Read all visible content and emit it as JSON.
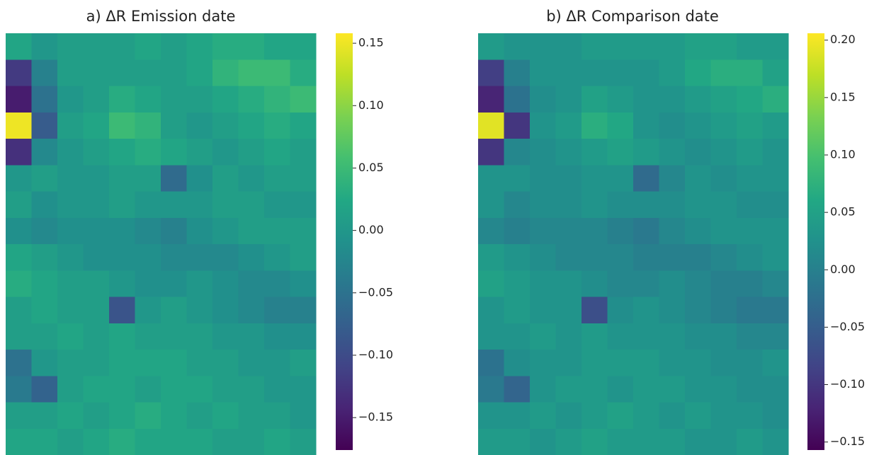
{
  "chart_data": [
    {
      "type": "heatmap",
      "title": "a) ΔR Emission date",
      "colormap": "viridis",
      "clim": [
        -0.176,
        0.158
      ],
      "cticks": [
        0.15,
        {
          "value": 0.1,
          "label": "0.10"
        },
        0.05,
        {
          "value": 0,
          "label": "0.00"
        },
        {
          "value": -0.05,
          "label": "−0.05"
        },
        {
          "value": -0.1,
          "label": "−0.10"
        },
        {
          "value": -0.15,
          "label": "−0.15"
        }
      ],
      "z": [
        [
          0.02,
          0.0,
          0.01,
          0.01,
          0.01,
          0.02,
          0.01,
          0.02,
          0.03,
          0.03,
          0.02,
          0.02
        ],
        [
          -0.12,
          -0.03,
          0.01,
          0.01,
          0.01,
          0.01,
          0.01,
          0.02,
          0.04,
          0.05,
          0.05,
          0.03
        ],
        [
          -0.15,
          -0.05,
          0.0,
          0.01,
          0.03,
          0.02,
          0.01,
          0.01,
          0.02,
          0.03,
          0.04,
          0.05
        ],
        [
          0.15,
          -0.08,
          0.01,
          0.02,
          0.05,
          0.04,
          0.01,
          0.0,
          0.01,
          0.02,
          0.03,
          0.02
        ],
        [
          -0.13,
          -0.02,
          0.0,
          0.01,
          0.02,
          0.03,
          0.02,
          0.01,
          0.0,
          0.01,
          0.02,
          0.01
        ],
        [
          0.0,
          0.01,
          0.0,
          0.0,
          0.01,
          0.01,
          -0.06,
          -0.01,
          0.01,
          0.0,
          0.01,
          0.01
        ],
        [
          0.01,
          -0.01,
          0.0,
          0.0,
          0.01,
          0.0,
          0.0,
          0.0,
          0.01,
          0.01,
          0.0,
          0.0
        ],
        [
          -0.01,
          -0.02,
          -0.01,
          -0.01,
          -0.01,
          -0.02,
          -0.03,
          -0.01,
          0.0,
          0.01,
          0.01,
          0.01
        ],
        [
          0.02,
          0.01,
          0.0,
          -0.01,
          -0.01,
          -0.01,
          -0.02,
          -0.02,
          -0.02,
          -0.01,
          0.0,
          0.01
        ],
        [
          0.03,
          0.02,
          0.01,
          0.01,
          0.0,
          -0.01,
          -0.01,
          0.0,
          -0.01,
          -0.02,
          -0.02,
          -0.01
        ],
        [
          0.01,
          0.02,
          0.01,
          0.01,
          -0.09,
          0.0,
          0.01,
          0.0,
          -0.01,
          -0.02,
          -0.03,
          -0.03
        ],
        [
          0.01,
          0.01,
          0.02,
          0.01,
          0.02,
          0.01,
          0.01,
          0.01,
          0.0,
          0.0,
          -0.01,
          -0.01
        ],
        [
          -0.05,
          0.0,
          0.01,
          0.01,
          0.02,
          0.02,
          0.02,
          0.01,
          0.01,
          0.0,
          0.0,
          0.01
        ],
        [
          -0.04,
          -0.07,
          0.01,
          0.02,
          0.02,
          0.01,
          0.02,
          0.02,
          0.01,
          0.01,
          0.0,
          0.0
        ],
        [
          0.01,
          0.01,
          0.02,
          0.01,
          0.02,
          0.03,
          0.02,
          0.01,
          0.02,
          0.01,
          0.01,
          0.0
        ],
        [
          0.02,
          0.02,
          0.01,
          0.02,
          0.03,
          0.02,
          0.02,
          0.02,
          0.01,
          0.01,
          0.02,
          0.01
        ]
      ]
    },
    {
      "type": "heatmap",
      "title": "b) ΔR Comparison date",
      "colormap": "viridis",
      "clim": [
        -0.157,
        0.206
      ],
      "cticks": [
        {
          "value": 0.2,
          "label": "0.20"
        },
        0.15,
        {
          "value": 0.1,
          "label": "0.10"
        },
        0.05,
        {
          "value": 0,
          "label": "0.00"
        },
        {
          "value": -0.05,
          "label": "−0.05"
        },
        {
          "value": -0.1,
          "label": "−0.10"
        },
        {
          "value": -0.15,
          "label": "−0.15"
        }
      ],
      "z": [
        [
          0.04,
          0.03,
          0.03,
          0.03,
          0.04,
          0.04,
          0.04,
          0.04,
          0.05,
          0.05,
          0.04,
          0.04
        ],
        [
          -0.09,
          0.0,
          0.03,
          0.03,
          0.03,
          0.03,
          0.03,
          0.04,
          0.06,
          0.07,
          0.07,
          0.05
        ],
        [
          -0.12,
          -0.02,
          0.02,
          0.03,
          0.05,
          0.04,
          0.03,
          0.03,
          0.04,
          0.05,
          0.06,
          0.07
        ],
        [
          0.19,
          -0.1,
          0.03,
          0.04,
          0.07,
          0.06,
          0.03,
          0.02,
          0.03,
          0.04,
          0.05,
          0.04
        ],
        [
          -0.1,
          0.01,
          0.02,
          0.03,
          0.04,
          0.05,
          0.04,
          0.03,
          0.02,
          0.03,
          0.04,
          0.03
        ],
        [
          0.03,
          0.03,
          0.02,
          0.02,
          0.03,
          0.03,
          -0.03,
          0.01,
          0.03,
          0.02,
          0.03,
          0.03
        ],
        [
          0.03,
          0.01,
          0.02,
          0.02,
          0.03,
          0.02,
          0.02,
          0.02,
          0.03,
          0.03,
          0.02,
          0.02
        ],
        [
          0.01,
          0.0,
          0.01,
          0.01,
          0.01,
          0.0,
          -0.01,
          0.01,
          0.02,
          0.03,
          0.03,
          0.03
        ],
        [
          0.04,
          0.03,
          0.02,
          0.01,
          0.01,
          0.01,
          0.0,
          0.0,
          0.0,
          0.01,
          0.02,
          0.03
        ],
        [
          0.05,
          0.04,
          0.03,
          0.03,
          0.02,
          0.01,
          0.01,
          0.02,
          0.01,
          0.0,
          0.0,
          0.01
        ],
        [
          0.03,
          0.04,
          0.03,
          0.03,
          -0.07,
          0.02,
          0.03,
          0.02,
          0.01,
          0.0,
          -0.01,
          -0.01
        ],
        [
          0.03,
          0.03,
          0.04,
          0.03,
          0.04,
          0.03,
          0.03,
          0.03,
          0.02,
          0.02,
          0.01,
          0.01
        ],
        [
          -0.02,
          0.02,
          0.03,
          0.03,
          0.04,
          0.04,
          0.04,
          0.03,
          0.03,
          0.02,
          0.02,
          0.03
        ],
        [
          -0.01,
          -0.04,
          0.03,
          0.04,
          0.04,
          0.03,
          0.04,
          0.04,
          0.03,
          0.03,
          0.02,
          0.02
        ],
        [
          0.03,
          0.03,
          0.04,
          0.03,
          0.04,
          0.05,
          0.04,
          0.03,
          0.04,
          0.03,
          0.03,
          0.02
        ],
        [
          0.04,
          0.04,
          0.03,
          0.04,
          0.05,
          0.04,
          0.04,
          0.04,
          0.03,
          0.03,
          0.04,
          0.03
        ]
      ]
    }
  ]
}
